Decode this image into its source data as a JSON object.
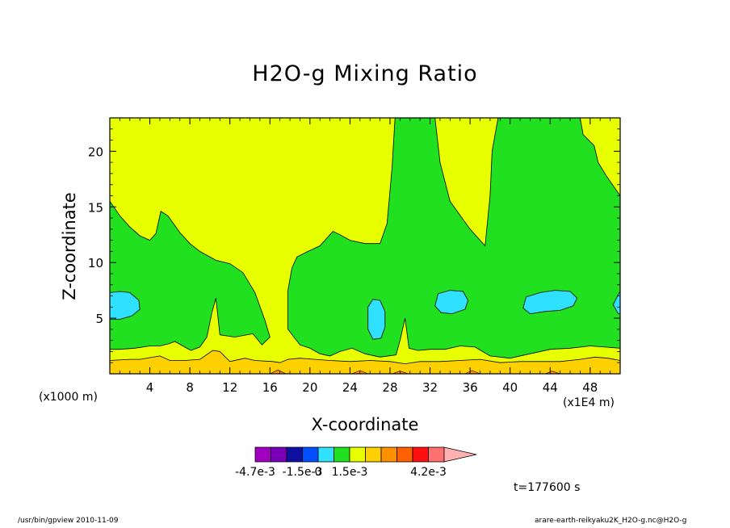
{
  "chart_data": {
    "type": "contour",
    "title": "H2O-g Mixing Ratio",
    "xlabel": "X-coordinate",
    "ylabel": "Z-coordinate",
    "x_unit_label": "(x1000 m)",
    "x_scale_label": "(x1E4 m)",
    "xlim": [
      0,
      51
    ],
    "ylim": [
      0,
      23
    ],
    "x_ticks": [
      4,
      8,
      12,
      16,
      20,
      24,
      28,
      32,
      36,
      40,
      44,
      48
    ],
    "y_ticks": [
      5,
      10,
      15,
      20
    ],
    "x_tick_labels": [
      "4",
      "8",
      "12",
      "16",
      "20",
      "24",
      "28",
      "32",
      "36",
      "40",
      "44",
      "48"
    ],
    "y_tick_labels": [
      "5",
      "10",
      "15",
      "20"
    ],
    "time_label": "t=177600 s",
    "colorbar": {
      "colors": [
        "#a000c0",
        "#7a00b8",
        "#1010a0",
        "#0050ff",
        "#30e0ff",
        "#20e020",
        "#e8ff00",
        "#ffd000",
        "#ff9000",
        "#ff6000",
        "#ff1010",
        "#ff7070",
        "#ffb0b0"
      ],
      "tick_labels": [
        "-4.7e-3",
        "-1.5e-3",
        "0",
        "1.5e-3",
        "4.2e-3"
      ],
      "tick_at_level": [
        0,
        3,
        4,
        6,
        11
      ]
    },
    "fields": {
      "background": "#e8ff00",
      "green_region": [
        [
          0,
          15.5
        ],
        [
          1,
          14.2
        ],
        [
          2,
          13.2
        ],
        [
          3,
          12.4
        ],
        [
          4,
          12.0
        ],
        [
          4.6,
          12.6
        ],
        [
          5.1,
          14.6
        ],
        [
          5.8,
          14.2
        ],
        [
          7,
          12.7
        ],
        [
          8,
          11.7
        ],
        [
          9,
          11.0
        ],
        [
          10.6,
          10.2
        ],
        [
          12,
          9.9
        ],
        [
          13.3,
          9.1
        ],
        [
          14.5,
          7.3
        ],
        [
          15.5,
          4.8
        ],
        [
          16,
          3.3
        ],
        [
          15.2,
          2.6
        ],
        [
          14.3,
          3.6
        ],
        [
          12.5,
          3.3
        ],
        [
          11,
          3.5
        ],
        [
          10.6,
          6.8
        ],
        [
          10.2,
          5.5
        ],
        [
          9.7,
          3.3
        ],
        [
          9,
          2.4
        ],
        [
          8.1,
          2.1
        ],
        [
          7.5,
          2.4
        ],
        [
          6.5,
          2.9
        ],
        [
          5.9,
          2.7
        ],
        [
          5,
          2.5
        ],
        [
          4,
          2.5
        ],
        [
          2.5,
          2.3
        ],
        [
          1,
          2.2
        ],
        [
          0,
          2.2
        ]
      ],
      "green_region_right": [
        [
          17.8,
          4.0
        ],
        [
          17.8,
          7.5
        ],
        [
          18.2,
          9.5
        ],
        [
          18.7,
          10.5
        ],
        [
          19.8,
          11.0
        ],
        [
          21,
          11.5
        ],
        [
          22.3,
          12.8
        ],
        [
          23,
          12.5
        ],
        [
          24,
          12.0
        ],
        [
          25.5,
          11.7
        ],
        [
          27,
          11.7
        ],
        [
          27.7,
          13.5
        ],
        [
          28.2,
          18.5
        ],
        [
          28.5,
          23
        ],
        [
          32.5,
          23
        ],
        [
          33,
          19
        ],
        [
          34,
          15.5
        ],
        [
          36,
          13.0
        ],
        [
          37.5,
          11.5
        ],
        [
          38,
          16
        ],
        [
          38.2,
          20
        ],
        [
          38.8,
          23
        ],
        [
          47,
          23
        ],
        [
          47.3,
          21.5
        ],
        [
          48.4,
          20.5
        ],
        [
          48.8,
          19.0
        ],
        [
          49.6,
          17.8
        ],
        [
          51,
          16.0
        ],
        [
          51,
          2.3
        ],
        [
          49.5,
          2.4
        ],
        [
          48,
          2.5
        ],
        [
          46,
          2.3
        ],
        [
          44,
          2.2
        ],
        [
          42,
          1.8
        ],
        [
          40,
          1.4
        ],
        [
          38,
          1.6
        ],
        [
          36.5,
          2.4
        ],
        [
          35,
          2.5
        ],
        [
          33.5,
          2.2
        ],
        [
          32,
          2.2
        ],
        [
          30.8,
          2.1
        ],
        [
          29.9,
          2.3
        ],
        [
          29.5,
          5.0
        ],
        [
          29.0,
          3.0
        ],
        [
          28.6,
          1.7
        ],
        [
          27,
          1.5
        ],
        [
          25.5,
          1.8
        ],
        [
          24.2,
          2.3
        ],
        [
          23,
          2.0
        ],
        [
          22,
          1.6
        ],
        [
          21,
          1.8
        ],
        [
          20,
          2.3
        ],
        [
          19,
          2.6
        ]
      ],
      "cyan_blobs": [
        [
          [
            0,
            4.9
          ],
          [
            1,
            4.9
          ],
          [
            2.2,
            5.2
          ],
          [
            3,
            5.8
          ],
          [
            2.9,
            6.6
          ],
          [
            2,
            7.3
          ],
          [
            1,
            7.4
          ],
          [
            0,
            7.3
          ]
        ],
        [
          [
            25.8,
            5.0
          ],
          [
            25.8,
            4.0
          ],
          [
            26.3,
            3.1
          ],
          [
            27.1,
            3.2
          ],
          [
            27.5,
            4.2
          ],
          [
            27.5,
            5.6
          ],
          [
            27.0,
            6.6
          ],
          [
            26.3,
            6.7
          ],
          [
            25.8,
            6.0
          ]
        ],
        [
          [
            32.5,
            6.1
          ],
          [
            33.1,
            5.5
          ],
          [
            34.2,
            5.4
          ],
          [
            35.5,
            5.8
          ],
          [
            35.8,
            6.6
          ],
          [
            35.3,
            7.4
          ],
          [
            34,
            7.5
          ],
          [
            32.8,
            7.2
          ]
        ],
        [
          [
            41.3,
            5.9
          ],
          [
            42,
            5.4
          ],
          [
            43.5,
            5.6
          ],
          [
            45,
            5.7
          ],
          [
            46.3,
            6.1
          ],
          [
            46.7,
            6.8
          ],
          [
            46,
            7.4
          ],
          [
            44.5,
            7.5
          ],
          [
            43,
            7.3
          ],
          [
            41.6,
            6.9
          ]
        ],
        [
          [
            50.3,
            6.2
          ],
          [
            50.8,
            5.4
          ],
          [
            51,
            5.4
          ],
          [
            51,
            7.4
          ],
          [
            50.8,
            7.1
          ]
        ]
      ],
      "orange_band": [
        [
          0,
          1.2
        ],
        [
          2,
          1.3
        ],
        [
          3,
          1.3
        ],
        [
          5,
          1.6
        ],
        [
          6,
          1.2
        ],
        [
          7.5,
          1.2
        ],
        [
          9,
          1.3
        ],
        [
          10.3,
          2.1
        ],
        [
          11,
          2.0
        ],
        [
          12,
          1.1
        ],
        [
          13.5,
          1.4
        ],
        [
          14.5,
          1.2
        ],
        [
          16.3,
          1.1
        ],
        [
          17,
          1.0
        ],
        [
          17.8,
          1.3
        ],
        [
          19,
          1.4
        ],
        [
          20.5,
          1.3
        ],
        [
          22,
          1.2
        ],
        [
          24,
          1.1
        ],
        [
          26,
          1.2
        ],
        [
          28,
          1.1
        ],
        [
          29.5,
          0.9
        ],
        [
          31,
          1.1
        ],
        [
          33,
          1.1
        ],
        [
          35,
          1.2
        ],
        [
          37,
          1.3
        ],
        [
          39,
          1.0
        ],
        [
          41,
          1.1
        ],
        [
          43,
          1.1
        ],
        [
          45,
          1.1
        ],
        [
          47,
          1.3
        ],
        [
          48.5,
          1.5
        ],
        [
          49.8,
          1.4
        ],
        [
          51,
          1.2
        ]
      ],
      "deep_orange_dips": [
        [
          [
            16,
            0
          ],
          [
            16.8,
            0.35
          ],
          [
            17.6,
            0
          ]
        ],
        [
          [
            24.2,
            0
          ],
          [
            25,
            0.3
          ],
          [
            25.8,
            0
          ]
        ],
        [
          [
            28.2,
            0
          ],
          [
            29,
            0.25
          ],
          [
            29.8,
            0
          ]
        ],
        [
          [
            35.5,
            0
          ],
          [
            36.2,
            0.3
          ],
          [
            37,
            0
          ]
        ],
        [
          [
            43.5,
            0
          ],
          [
            44.2,
            0.25
          ],
          [
            45,
            0
          ]
        ]
      ]
    }
  },
  "footer": {
    "left": "/usr/bin/gpview  2010-11-09",
    "right": "arare-earth-reikyaku2K_H2O-g.nc@H2O-g"
  }
}
